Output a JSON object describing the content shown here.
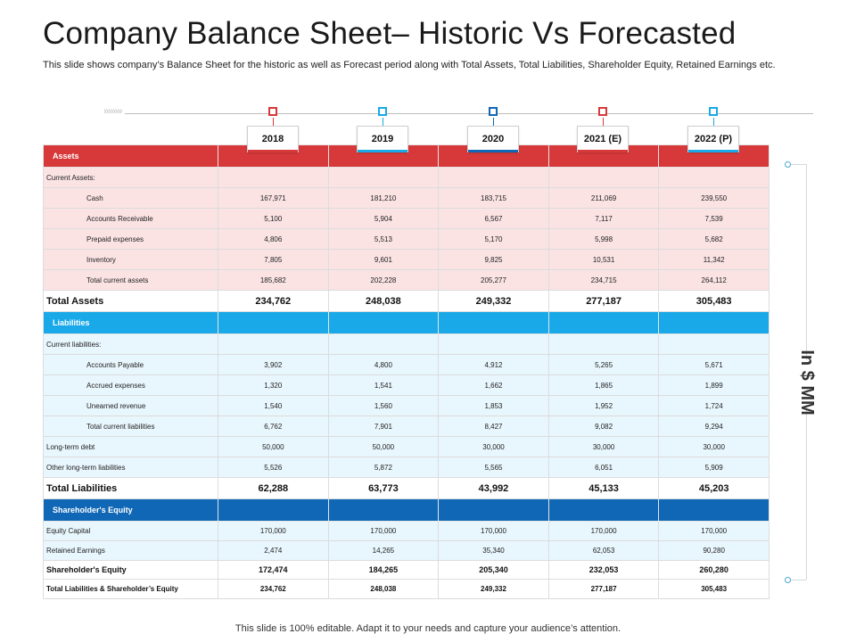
{
  "title": "Company Balance Sheet– Historic Vs Forecasted",
  "subtitle": "This slide shows company’s Balance Sheet for the historic as well as Forecast period along with Total Assets, Total Liabilities, Shareholder Equity, Retained Earnings etc.",
  "chevrons": "»»»»",
  "years": [
    "2018",
    "2019",
    "2020",
    "2021 (E)",
    "2022 (P)"
  ],
  "year_colors": [
    "#d7393a",
    "#1aa9e8",
    "#1067b6",
    "#d7393a",
    "#1aa9e8"
  ],
  "unit_label": "In $ MM",
  "footer": "This slide is 100% editable. Adapt it to your needs and capture your audience’s attention.",
  "table": {
    "assets_header": "Assets",
    "current_assets_label": "Current Assets:",
    "current_assets": [
      {
        "label": "Cash",
        "values": [
          "167,971",
          "181,210",
          "183,715",
          "211,069",
          "239,550"
        ]
      },
      {
        "label": "Accounts Receivable",
        "values": [
          "5,100",
          "5,904",
          "6,567",
          "7,117",
          "7,539"
        ]
      },
      {
        "label": "Prepaid expenses",
        "values": [
          "4,806",
          "5,513",
          "5,170",
          "5,998",
          "5,682"
        ]
      },
      {
        "label": "Inventory",
        "values": [
          "7,805",
          "9,601",
          "9,825",
          "10,531",
          "11,342"
        ]
      },
      {
        "label": "Total current assets",
        "values": [
          "185,682",
          "202,228",
          "205,277",
          "234,715",
          "264,112"
        ]
      }
    ],
    "total_assets": {
      "label": "Total Assets",
      "values": [
        "234,762",
        "248,038",
        "249,332",
        "277,187",
        "305,483"
      ]
    },
    "liabilities_header": "Liabilities",
    "current_liabilities_label": "Current liabilities:",
    "current_liabilities": [
      {
        "label": "Accounts Payable",
        "values": [
          "3,902",
          "4,800",
          "4,912",
          "5,265",
          "5,671"
        ]
      },
      {
        "label": "Accrued expenses",
        "values": [
          "1,320",
          "1,541",
          "1,662",
          "1,865",
          "1,899"
        ]
      },
      {
        "label": "Unearned revenue",
        "values": [
          "1,540",
          "1,560",
          "1,853",
          "1,952",
          "1,724"
        ]
      },
      {
        "label": "Total current liabilities",
        "values": [
          "6,762",
          "7,901",
          "8,427",
          "9,082",
          "9,294"
        ]
      }
    ],
    "other_liabilities": [
      {
        "label": "Long-term debt",
        "values": [
          "50,000",
          "50,000",
          "30,000",
          "30,000",
          "30,000"
        ]
      },
      {
        "label": "Other long-term liabilities",
        "values": [
          "5,526",
          "5,872",
          "5,565",
          "6,051",
          "5,909"
        ]
      }
    ],
    "total_liabilities": {
      "label": "Total Liabilities",
      "values": [
        "62,288",
        "63,773",
        "43,992",
        "45,133",
        "45,203"
      ]
    },
    "equity_header": "Shareholder's Equity",
    "equity_rows": [
      {
        "label": "Equity Capital",
        "values": [
          "170,000",
          "170,000",
          "170,000",
          "170,000",
          "170,000"
        ]
      },
      {
        "label": "Retained Earnings",
        "values": [
          "2,474",
          "14,265",
          "35,340",
          "62,053",
          "90,280"
        ]
      }
    ],
    "shareholders_equity": {
      "label": "Shareholder's Equity",
      "values": [
        "172,474",
        "184,265",
        "205,340",
        "232,053",
        "260,280"
      ]
    },
    "grand_total": {
      "label": "Total Liabilities & Shareholder’s Equity",
      "values": [
        "234,762",
        "248,038",
        "249,332",
        "277,187",
        "305,483"
      ]
    }
  }
}
